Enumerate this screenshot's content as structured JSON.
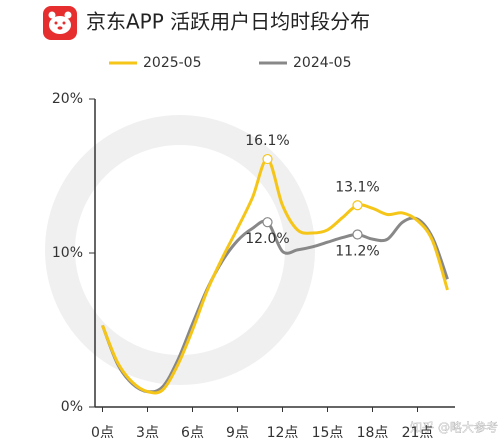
{
  "chart_data": {
    "type": "line",
    "title": "京东APP 活跃用户日均时段分布",
    "x": [
      0,
      1,
      2,
      3,
      4,
      5,
      6,
      7,
      8,
      9,
      10,
      11,
      12,
      13,
      14,
      15,
      16,
      17,
      18,
      19,
      20,
      21,
      22,
      23
    ],
    "xlim": [
      -0.5,
      23.5
    ],
    "xticks": [
      {
        "value": 0,
        "label": "0点"
      },
      {
        "value": 3,
        "label": "3点"
      },
      {
        "value": 6,
        "label": "6点"
      },
      {
        "value": 9,
        "label": "9点"
      },
      {
        "value": 12,
        "label": "12点"
      },
      {
        "value": 15,
        "label": "15点"
      },
      {
        "value": 18,
        "label": "18点"
      },
      {
        "value": 21,
        "label": "21点"
      }
    ],
    "ylim": [
      0,
      20
    ],
    "yticks": [
      {
        "value": 0,
        "label": "0%"
      },
      {
        "value": 10,
        "label": "10%"
      },
      {
        "value": 20,
        "label": "20%"
      }
    ],
    "series": [
      {
        "name": "2025-05",
        "color": "#f5c518",
        "values": [
          5.3,
          2.9,
          1.6,
          1.0,
          1.1,
          2.7,
          5.0,
          7.6,
          9.7,
          11.6,
          13.6,
          16.1,
          13.1,
          11.5,
          11.3,
          11.5,
          12.3,
          13.1,
          12.9,
          12.5,
          12.6,
          12.1,
          10.8,
          7.6
        ],
        "value_labels": [
          null,
          null,
          null,
          null,
          null,
          null,
          null,
          null,
          null,
          null,
          null,
          "16.1%",
          null,
          null,
          null,
          null,
          null,
          "13.1%",
          null,
          null,
          null,
          null,
          null,
          null
        ]
      },
      {
        "name": "2024-05",
        "color": "#888888",
        "values": [
          5.3,
          2.8,
          1.5,
          1.0,
          1.3,
          3.0,
          5.4,
          7.7,
          9.5,
          10.8,
          11.6,
          12.0,
          10.1,
          10.2,
          10.4,
          10.7,
          11.0,
          11.2,
          10.9,
          10.9,
          12.0,
          12.2,
          11.0,
          8.3
        ],
        "value_labels": [
          null,
          null,
          null,
          null,
          null,
          null,
          null,
          null,
          null,
          null,
          null,
          "12.0%",
          null,
          null,
          null,
          null,
          null,
          "11.2%",
          null,
          null,
          null,
          null,
          null,
          null
        ]
      }
    ],
    "watermark": "知乎 @略大参考"
  }
}
